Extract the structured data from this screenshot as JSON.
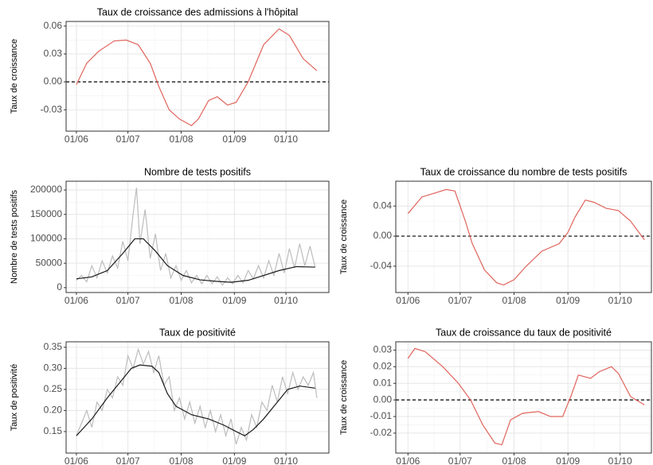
{
  "chart_data": [
    {
      "type": "line",
      "title": "Taux de croissance des admissions à l'hôpital",
      "y_label": "Taux de croissance",
      "xlim": [
        "26/05",
        "26/10"
      ],
      "xticks": [
        "01/06",
        "01/07",
        "01/08",
        "01/09",
        "01/10"
      ],
      "ylim": [
        -0.053,
        0.065
      ],
      "yticks": [
        -0.03,
        {
          "value": 0,
          "label": "0.00"
        },
        0.03,
        0.06
      ],
      "grid": true,
      "hline": 0,
      "series": [
        {
          "color": "#e0645c",
          "x": [
            "01/06",
            "07/06",
            "14/06",
            "23/06",
            "30/06",
            "07/07",
            "14/07",
            "19/07",
            "25/07",
            "31/07",
            "07/08",
            "11/08",
            "17/08",
            "22/08",
            "28/08",
            "02/09",
            "09/09",
            "18/09",
            "27/09",
            "03/10",
            "11/10",
            "19/10"
          ],
          "values": [
            -0.003,
            0.02,
            0.033,
            0.044,
            0.045,
            0.04,
            0.02,
            -0.005,
            -0.03,
            -0.04,
            -0.047,
            -0.04,
            -0.02,
            -0.016,
            -0.025,
            -0.022,
            0.0,
            0.04,
            0.057,
            0.05,
            0.025,
            0.012
          ]
        }
      ]
    },
    {
      "type": "line",
      "title": "Nombre de tests positifs",
      "y_label": "Nombre de tests positifs",
      "xlim": [
        "26/05",
        "26/10"
      ],
      "xticks": [
        "01/06",
        "01/07",
        "01/08",
        "01/09",
        "01/10"
      ],
      "ylim": [
        -10000,
        218000
      ],
      "yticks": [
        0,
        50000,
        100000,
        150000,
        200000
      ],
      "grid": true,
      "series": [
        {
          "color": "#bdbdbd",
          "x": [
            "01/06",
            "04/06",
            "07/06",
            "10/06",
            "13/06",
            "16/06",
            "19/06",
            "22/06",
            "25/06",
            "28/06",
            "01/07",
            "04/07",
            "06/07",
            "08/07",
            "11/07",
            "14/07",
            "17/07",
            "20/07",
            "23/07",
            "26/07",
            "29/07",
            "01/08",
            "04/08",
            "07/08",
            "10/08",
            "13/08",
            "16/08",
            "19/08",
            "22/08",
            "25/08",
            "28/08",
            "31/08",
            "03/09",
            "06/09",
            "09/09",
            "12/09",
            "15/09",
            "18/09",
            "21/09",
            "24/09",
            "27/09",
            "30/09",
            "03/10",
            "06/10",
            "09/10",
            "12/10",
            "15/10",
            "18/10"
          ],
          "values": [
            15000,
            25000,
            12000,
            45000,
            20000,
            55000,
            30000,
            65000,
            40000,
            95000,
            55000,
            150000,
            205000,
            90000,
            160000,
            60000,
            110000,
            35000,
            70000,
            20000,
            45000,
            15000,
            35000,
            10000,
            25000,
            8000,
            25000,
            8000,
            22000,
            5000,
            20000,
            8000,
            25000,
            10000,
            35000,
            18000,
            45000,
            20000,
            55000,
            25000,
            70000,
            30000,
            80000,
            40000,
            90000,
            45000,
            85000,
            42000
          ]
        },
        {
          "color": "#1a1a1a",
          "x": [
            "01/06",
            "10/06",
            "19/06",
            "28/06",
            "05/07",
            "10/07",
            "17/07",
            "24/07",
            "02/08",
            "12/08",
            "21/08",
            "30/08",
            "09/09",
            "18/09",
            "27/09",
            "07/10",
            "18/10"
          ],
          "values": [
            18000,
            22000,
            35000,
            70000,
            100000,
            100000,
            75000,
            45000,
            25000,
            16000,
            13000,
            11000,
            15000,
            25000,
            35000,
            43000,
            42000
          ]
        }
      ]
    },
    {
      "type": "line",
      "title": "Taux de croissance du nombre de tests positifs",
      "y_label": "Taux de croissance",
      "xlim": [
        "25/05",
        "19/10"
      ],
      "xticks": [
        "01/06",
        "01/07",
        "01/08",
        "01/09",
        "01/10"
      ],
      "ylim": [
        -0.075,
        0.073
      ],
      "yticks": [
        -0.04,
        {
          "value": 0,
          "label": "0.00"
        },
        0.04
      ],
      "grid": true,
      "hline": 0,
      "series": [
        {
          "color": "#e0645c",
          "x": [
            "01/06",
            "09/06",
            "16/06",
            "23/06",
            "28/06",
            "04/07",
            "08/07",
            "15/07",
            "22/07",
            "26/07",
            "01/08",
            "08/08",
            "17/08",
            "27/08",
            "01/09",
            "05/09",
            "11/09",
            "16/09",
            "23/09",
            "30/09",
            "07/10",
            "15/10"
          ],
          "values": [
            0.03,
            0.052,
            0.057,
            0.062,
            0.06,
            0.02,
            -0.01,
            -0.045,
            -0.062,
            -0.065,
            -0.058,
            -0.04,
            -0.02,
            -0.01,
            0.005,
            0.025,
            0.048,
            0.045,
            0.037,
            0.034,
            0.02,
            -0.005
          ]
        }
      ]
    },
    {
      "type": "line",
      "title": "Taux de positivité",
      "y_label": "Taux de positivité",
      "xlim": [
        "26/05",
        "26/10"
      ],
      "xticks": [
        "01/06",
        "01/07",
        "01/08",
        "01/09",
        "01/10"
      ],
      "ylim": [
        0.099,
        0.363
      ],
      "yticks": [
        0.15,
        {
          "value": 0.2,
          "label": "0.20"
        },
        0.25,
        {
          "value": 0.3,
          "label": "0.30"
        },
        0.35
      ],
      "grid": true,
      "series": [
        {
          "color": "#bdbdbd",
          "x": [
            "01/06",
            "04/06",
            "07/06",
            "10/06",
            "13/06",
            "16/06",
            "19/06",
            "22/06",
            "25/06",
            "28/06",
            "01/07",
            "04/07",
            "07/07",
            "10/07",
            "13/07",
            "16/07",
            "19/07",
            "22/07",
            "25/07",
            "28/07",
            "31/07",
            "03/08",
            "06/08",
            "09/08",
            "12/08",
            "15/08",
            "18/08",
            "21/08",
            "24/08",
            "27/08",
            "30/08",
            "02/09",
            "05/09",
            "08/09",
            "11/09",
            "14/09",
            "17/09",
            "20/09",
            "23/09",
            "26/09",
            "29/09",
            "02/10",
            "05/10",
            "08/10",
            "11/10",
            "14/10",
            "17/10",
            "19/10"
          ],
          "values": [
            0.14,
            0.17,
            0.2,
            0.16,
            0.22,
            0.2,
            0.25,
            0.23,
            0.28,
            0.26,
            0.33,
            0.3,
            0.345,
            0.31,
            0.34,
            0.29,
            0.33,
            0.26,
            0.28,
            0.2,
            0.23,
            0.18,
            0.22,
            0.17,
            0.21,
            0.16,
            0.2,
            0.15,
            0.19,
            0.14,
            0.18,
            0.12,
            0.16,
            0.13,
            0.19,
            0.16,
            0.22,
            0.2,
            0.26,
            0.22,
            0.28,
            0.24,
            0.29,
            0.25,
            0.28,
            0.26,
            0.29,
            0.23
          ]
        },
        {
          "color": "#1a1a1a",
          "x": [
            "01/06",
            "10/06",
            "19/06",
            "26/06",
            "03/07",
            "08/07",
            "15/07",
            "19/07",
            "24/07",
            "29/07",
            "07/08",
            "17/08",
            "26/08",
            "02/09",
            "07/09",
            "12/09",
            "18/09",
            "26/09",
            "02/10",
            "09/10",
            "18/10"
          ],
          "values": [
            0.14,
            0.18,
            0.23,
            0.265,
            0.3,
            0.308,
            0.305,
            0.29,
            0.24,
            0.21,
            0.19,
            0.18,
            0.165,
            0.15,
            0.14,
            0.155,
            0.18,
            0.22,
            0.25,
            0.258,
            0.253
          ]
        }
      ]
    },
    {
      "type": "line",
      "title": "Taux de croissance du taux de positivité",
      "y_label": "Taux de croissance",
      "xlim": [
        "25/05",
        "19/10"
      ],
      "xticks": [
        "01/06",
        "01/07",
        "01/08",
        "01/09",
        "01/10"
      ],
      "ylim": [
        -0.032,
        0.035
      ],
      "yticks": [
        -0.02,
        -0.01,
        {
          "value": 0,
          "label": "0.00"
        },
        0.01,
        0.02,
        0.03
      ],
      "grid": true,
      "hline": 0,
      "series": [
        {
          "color": "#e0645c",
          "x": [
            "01/06",
            "05/06",
            "11/06",
            "21/06",
            "30/06",
            "07/07",
            "14/07",
            "21/07",
            "25/07",
            "30/07",
            "06/08",
            "15/08",
            "22/08",
            "29/08",
            "03/09",
            "07/09",
            "14/09",
            "19/09",
            "26/09",
            "30/09",
            "07/10",
            "15/10"
          ],
          "values": [
            0.025,
            0.031,
            0.029,
            0.02,
            0.01,
            0.0,
            -0.015,
            -0.026,
            -0.027,
            -0.012,
            -0.008,
            -0.007,
            -0.01,
            -0.01,
            0.003,
            0.015,
            0.013,
            0.017,
            0.02,
            0.016,
            0.002,
            -0.003
          ]
        }
      ]
    }
  ]
}
